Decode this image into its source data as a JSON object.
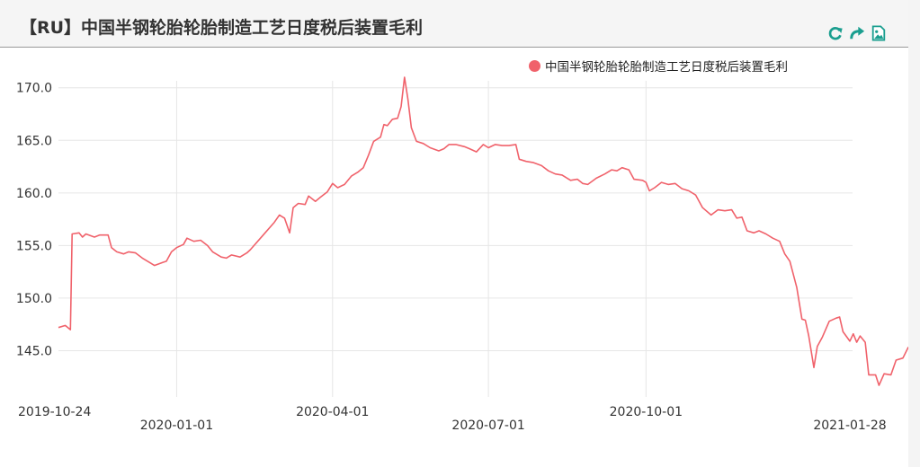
{
  "header": {
    "title": "【RU】中国半钢轮胎轮胎制造工艺日度税后装置毛利",
    "tools": [
      {
        "name": "refresh-icon",
        "color": "#1a9e8f"
      },
      {
        "name": "share-icon",
        "color": "#1a9e8f"
      },
      {
        "name": "image-export-icon",
        "color": "#1a9e8f"
      }
    ]
  },
  "chart_data": {
    "type": "line",
    "title": "",
    "xlabel": "",
    "ylabel": "",
    "ylim": [
      140.6,
      171.0
    ],
    "yticks": [
      145.0,
      150.0,
      155.0,
      160.0,
      165.0,
      170.0
    ],
    "ytick_labels": [
      "145.0",
      "150.0",
      "155.0",
      "160.0",
      "165.0",
      "170.0"
    ],
    "xticks": [
      "2019-10-24",
      "2020-01-01",
      "2020-04-01",
      "2020-07-01",
      "2020-10-01",
      "2021-01-28"
    ],
    "grid": true,
    "legend_position": "top-right",
    "series": [
      {
        "name": "中国半钢轮胎轮胎制造工艺日度税后装置毛利",
        "color": "#f0626b",
        "points": [
          [
            "2019-10-24",
            147.2
          ],
          [
            "2019-10-28",
            147.4
          ],
          [
            "2019-10-31",
            147.0
          ],
          [
            "2019-11-01",
            156.1
          ],
          [
            "2019-11-05",
            156.2
          ],
          [
            "2019-11-07",
            155.8
          ],
          [
            "2019-11-09",
            156.1
          ],
          [
            "2019-11-14",
            155.8
          ],
          [
            "2019-11-17",
            156.0
          ],
          [
            "2019-11-22",
            156.0
          ],
          [
            "2019-11-24",
            154.8
          ],
          [
            "2019-11-27",
            154.4
          ],
          [
            "2019-12-01",
            154.2
          ],
          [
            "2019-12-04",
            154.4
          ],
          [
            "2019-12-08",
            154.3
          ],
          [
            "2019-12-12",
            153.8
          ],
          [
            "2019-12-16",
            153.4
          ],
          [
            "2019-12-19",
            153.1
          ],
          [
            "2019-12-24",
            153.4
          ],
          [
            "2019-12-26",
            153.5
          ],
          [
            "2019-12-29",
            154.4
          ],
          [
            "2020-01-01",
            154.8
          ],
          [
            "2020-01-05",
            155.1
          ],
          [
            "2020-01-07",
            155.7
          ],
          [
            "2020-01-11",
            155.4
          ],
          [
            "2020-01-15",
            155.5
          ],
          [
            "2020-01-19",
            155.0
          ],
          [
            "2020-01-22",
            154.4
          ],
          [
            "2020-01-27",
            153.9
          ],
          [
            "2020-01-30",
            153.8
          ],
          [
            "2020-02-02",
            154.1
          ],
          [
            "2020-02-07",
            153.9
          ],
          [
            "2020-02-11",
            154.3
          ],
          [
            "2020-02-13",
            154.6
          ],
          [
            "2020-02-20",
            155.9
          ],
          [
            "2020-02-27",
            157.2
          ],
          [
            "2020-03-01",
            157.9
          ],
          [
            "2020-03-04",
            157.6
          ],
          [
            "2020-03-07",
            156.2
          ],
          [
            "2020-03-09",
            158.6
          ],
          [
            "2020-03-12",
            159.0
          ],
          [
            "2020-03-16",
            158.9
          ],
          [
            "2020-03-18",
            159.7
          ],
          [
            "2020-03-22",
            159.2
          ],
          [
            "2020-03-25",
            159.6
          ],
          [
            "2020-03-29",
            160.1
          ],
          [
            "2020-04-01",
            160.9
          ],
          [
            "2020-04-04",
            160.5
          ],
          [
            "2020-04-08",
            160.8
          ],
          [
            "2020-04-12",
            161.6
          ],
          [
            "2020-04-16",
            162.0
          ],
          [
            "2020-04-19",
            162.4
          ],
          [
            "2020-04-22",
            163.6
          ],
          [
            "2020-04-25",
            164.9
          ],
          [
            "2020-04-29",
            165.3
          ],
          [
            "2020-05-01",
            166.5
          ],
          [
            "2020-05-03",
            166.4
          ],
          [
            "2020-05-06",
            167.0
          ],
          [
            "2020-05-09",
            167.1
          ],
          [
            "2020-05-11",
            168.2
          ],
          [
            "2020-05-13",
            171.0
          ],
          [
            "2020-05-15",
            168.9
          ],
          [
            "2020-05-17",
            166.2
          ],
          [
            "2020-05-20",
            164.9
          ],
          [
            "2020-05-24",
            164.7
          ],
          [
            "2020-05-28",
            164.3
          ],
          [
            "2020-06-02",
            164.0
          ],
          [
            "2020-06-05",
            164.2
          ],
          [
            "2020-06-08",
            164.6
          ],
          [
            "2020-06-12",
            164.6
          ],
          [
            "2020-06-17",
            164.4
          ],
          [
            "2020-06-20",
            164.2
          ],
          [
            "2020-06-24",
            163.9
          ],
          [
            "2020-06-28",
            164.6
          ],
          [
            "2020-07-01",
            164.3
          ],
          [
            "2020-07-05",
            164.6
          ],
          [
            "2020-07-09",
            164.5
          ],
          [
            "2020-07-13",
            164.5
          ],
          [
            "2020-07-17",
            164.6
          ],
          [
            "2020-07-19",
            163.2
          ],
          [
            "2020-07-23",
            163.0
          ],
          [
            "2020-07-27",
            162.9
          ],
          [
            "2020-08-01",
            162.6
          ],
          [
            "2020-08-05",
            162.1
          ],
          [
            "2020-08-09",
            161.8
          ],
          [
            "2020-08-13",
            161.7
          ],
          [
            "2020-08-18",
            161.2
          ],
          [
            "2020-08-22",
            161.3
          ],
          [
            "2020-08-25",
            160.9
          ],
          [
            "2020-08-28",
            160.8
          ],
          [
            "2020-09-02",
            161.4
          ],
          [
            "2020-09-07",
            161.8
          ],
          [
            "2020-09-11",
            162.2
          ],
          [
            "2020-09-14",
            162.1
          ],
          [
            "2020-09-17",
            162.4
          ],
          [
            "2020-09-21",
            162.2
          ],
          [
            "2020-09-24",
            161.3
          ],
          [
            "2020-09-29",
            161.2
          ],
          [
            "2020-10-01",
            161.0
          ],
          [
            "2020-10-03",
            160.2
          ],
          [
            "2020-10-06",
            160.5
          ],
          [
            "2020-10-10",
            161.0
          ],
          [
            "2020-10-14",
            160.8
          ],
          [
            "2020-10-18",
            160.9
          ],
          [
            "2020-10-22",
            160.4
          ],
          [
            "2020-10-26",
            160.2
          ],
          [
            "2020-10-30",
            159.8
          ],
          [
            "2020-11-03",
            158.6
          ],
          [
            "2020-11-08",
            157.9
          ],
          [
            "2020-11-12",
            158.4
          ],
          [
            "2020-11-16",
            158.3
          ],
          [
            "2020-11-20",
            158.4
          ],
          [
            "2020-11-23",
            157.6
          ],
          [
            "2020-11-26",
            157.7
          ],
          [
            "2020-11-29",
            156.4
          ],
          [
            "2020-12-03",
            156.2
          ],
          [
            "2020-12-06",
            156.4
          ],
          [
            "2020-12-10",
            156.1
          ],
          [
            "2020-12-14",
            155.7
          ],
          [
            "2020-12-18",
            155.4
          ],
          [
            "2020-12-21",
            154.2
          ],
          [
            "2020-12-24",
            153.5
          ],
          [
            "2020-12-28",
            151.0
          ],
          [
            "2020-12-31",
            148.0
          ],
          [
            "2021-01-02",
            147.9
          ],
          [
            "2021-01-04",
            146.4
          ],
          [
            "2021-01-07",
            143.4
          ],
          [
            "2021-01-09",
            145.4
          ],
          [
            "2021-01-12",
            146.3
          ],
          [
            "2021-01-16",
            147.8
          ],
          [
            "2021-01-20",
            148.1
          ],
          [
            "2021-01-22",
            148.2
          ],
          [
            "2021-01-24",
            146.8
          ],
          [
            "2021-01-28",
            145.9
          ],
          [
            "2021-01-30",
            146.6
          ],
          [
            "2021-02-01",
            145.8
          ],
          [
            "2021-02-03",
            146.4
          ],
          [
            "2021-02-06",
            145.8
          ],
          [
            "2021-02-08",
            142.7
          ],
          [
            "2021-02-12",
            142.7
          ],
          [
            "2021-02-14",
            141.7
          ],
          [
            "2021-02-17",
            142.8
          ],
          [
            "2021-02-21",
            142.7
          ],
          [
            "2021-02-24",
            144.1
          ],
          [
            "2021-02-28",
            144.3
          ],
          [
            "2021-03-03",
            145.3
          ],
          [
            "2021-03-06",
            145.0
          ],
          [
            "2021-03-09",
            144.8
          ],
          [
            "2021-03-11",
            146.4
          ],
          [
            "2021-03-13",
            145.2
          ],
          [
            "2021-03-17",
            145.5
          ],
          [
            "2021-03-22",
            144.9
          ],
          [
            "2021-03-26",
            144.5
          ],
          [
            "2021-03-29",
            143.9
          ],
          [
            "2021-04-02",
            144.4
          ],
          [
            "2021-04-05",
            142.4
          ],
          [
            "2021-04-07",
            141.0
          ],
          [
            "2021-04-09",
            140.6
          ],
          [
            "2021-04-14",
            141.2
          ],
          [
            "2021-04-17",
            141.3
          ],
          [
            "2021-04-19",
            145.8
          ]
        ]
      }
    ]
  }
}
